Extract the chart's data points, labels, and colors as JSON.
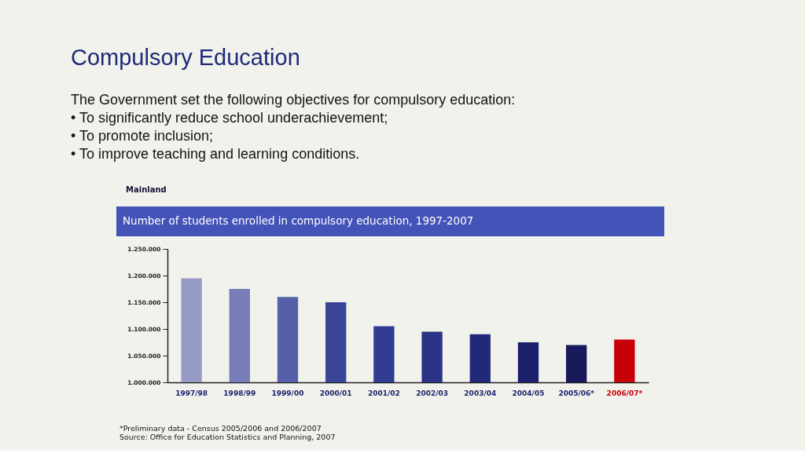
{
  "chart_data": {
    "type": "bar",
    "title": "Compulsory Education",
    "subtitle": "Number of students enrolled in compulsory education, 1997-2007",
    "annotations": [
      "The Government set the following objectives for compulsory education:",
      "• To significantly reduce school underachievement;",
      "• To promote inclusion;",
      "• To improve teaching and learning conditions.",
      "Mainland",
      "*Preliminary data - Census 2005/2006 and 2006/2007",
      "Source: Office for Education Statistics and Planning, 2007"
    ],
    "categories": [
      "1997/98",
      "1998/99",
      "1999/00",
      "2000/01",
      "2001/02",
      "2002/03",
      "2003/04",
      "2004/05",
      "2005/06*",
      "2006/07*"
    ],
    "values": [
      1195000,
      1175000,
      1160000,
      1150000,
      1105000,
      1095000,
      1090000,
      1075000,
      1070000,
      1080000
    ],
    "colors": [
      "#969bc6",
      "#767db9",
      "#5560a8",
      "#3a4496",
      "#323c90",
      "#2a3386",
      "#212979",
      "#1a206c",
      "#17195a",
      "#c8000a"
    ],
    "ylim": [
      1000000,
      1250000
    ],
    "yticks": [
      {
        "value": 1000000,
        "label": "1.000.000"
      },
      {
        "value": 1050000,
        "label": "1.050.000"
      },
      {
        "value": 1100000,
        "label": "1.100.000"
      },
      {
        "value": 1150000,
        "label": "1.150.000"
      },
      {
        "value": 1200000,
        "label": "1.200.000"
      },
      {
        "value": 1250000,
        "label": "1.250.000"
      }
    ]
  }
}
